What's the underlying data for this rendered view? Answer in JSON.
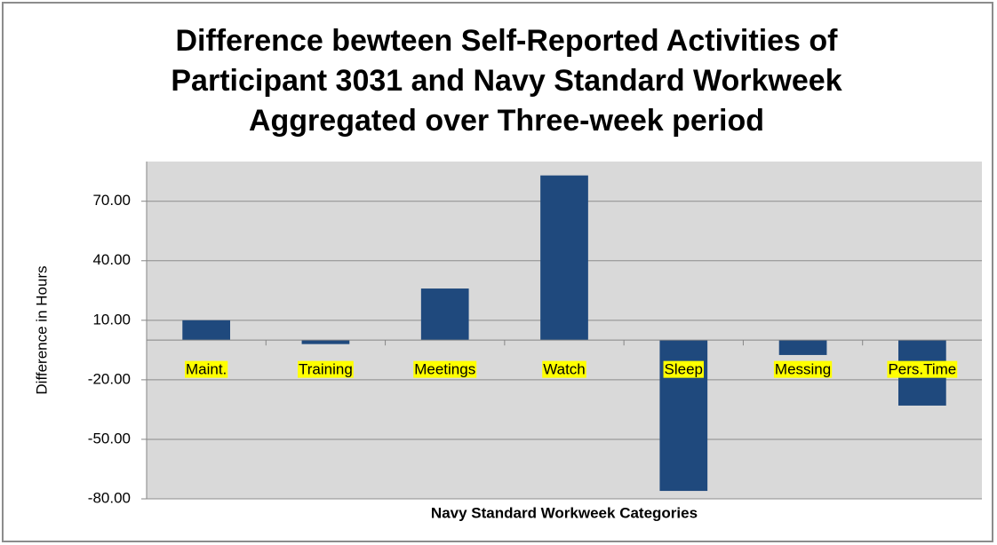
{
  "chart_data": {
    "type": "bar",
    "title": [
      "Difference bewteen Self-Reported Activities of",
      "Participant 3031 and Navy Standard Workweek",
      "Aggregated over Three-week period"
    ],
    "y_label": "Difference in Hours",
    "x_label": "Navy Standard Workweek Categories",
    "categories": [
      "Maint.",
      "Training",
      "Meetings",
      "Watch",
      "Sleep",
      "Messing",
      "Pers.Time"
    ],
    "values": [
      10,
      -2,
      26,
      83,
      -76,
      -7.5,
      -33
    ],
    "color": "#1f497d",
    "ylim": [
      -80,
      90
    ],
    "yticks": [
      {
        "value": -80,
        "label": "-80.00"
      },
      {
        "value": -50,
        "label": "-50.00"
      },
      {
        "value": -20,
        "label": "-20.00"
      },
      {
        "value": 10,
        "label": "10.00"
      },
      {
        "value": 40,
        "label": "40.00"
      },
      {
        "value": 70,
        "label": "70.00"
      }
    ],
    "grid": true
  }
}
